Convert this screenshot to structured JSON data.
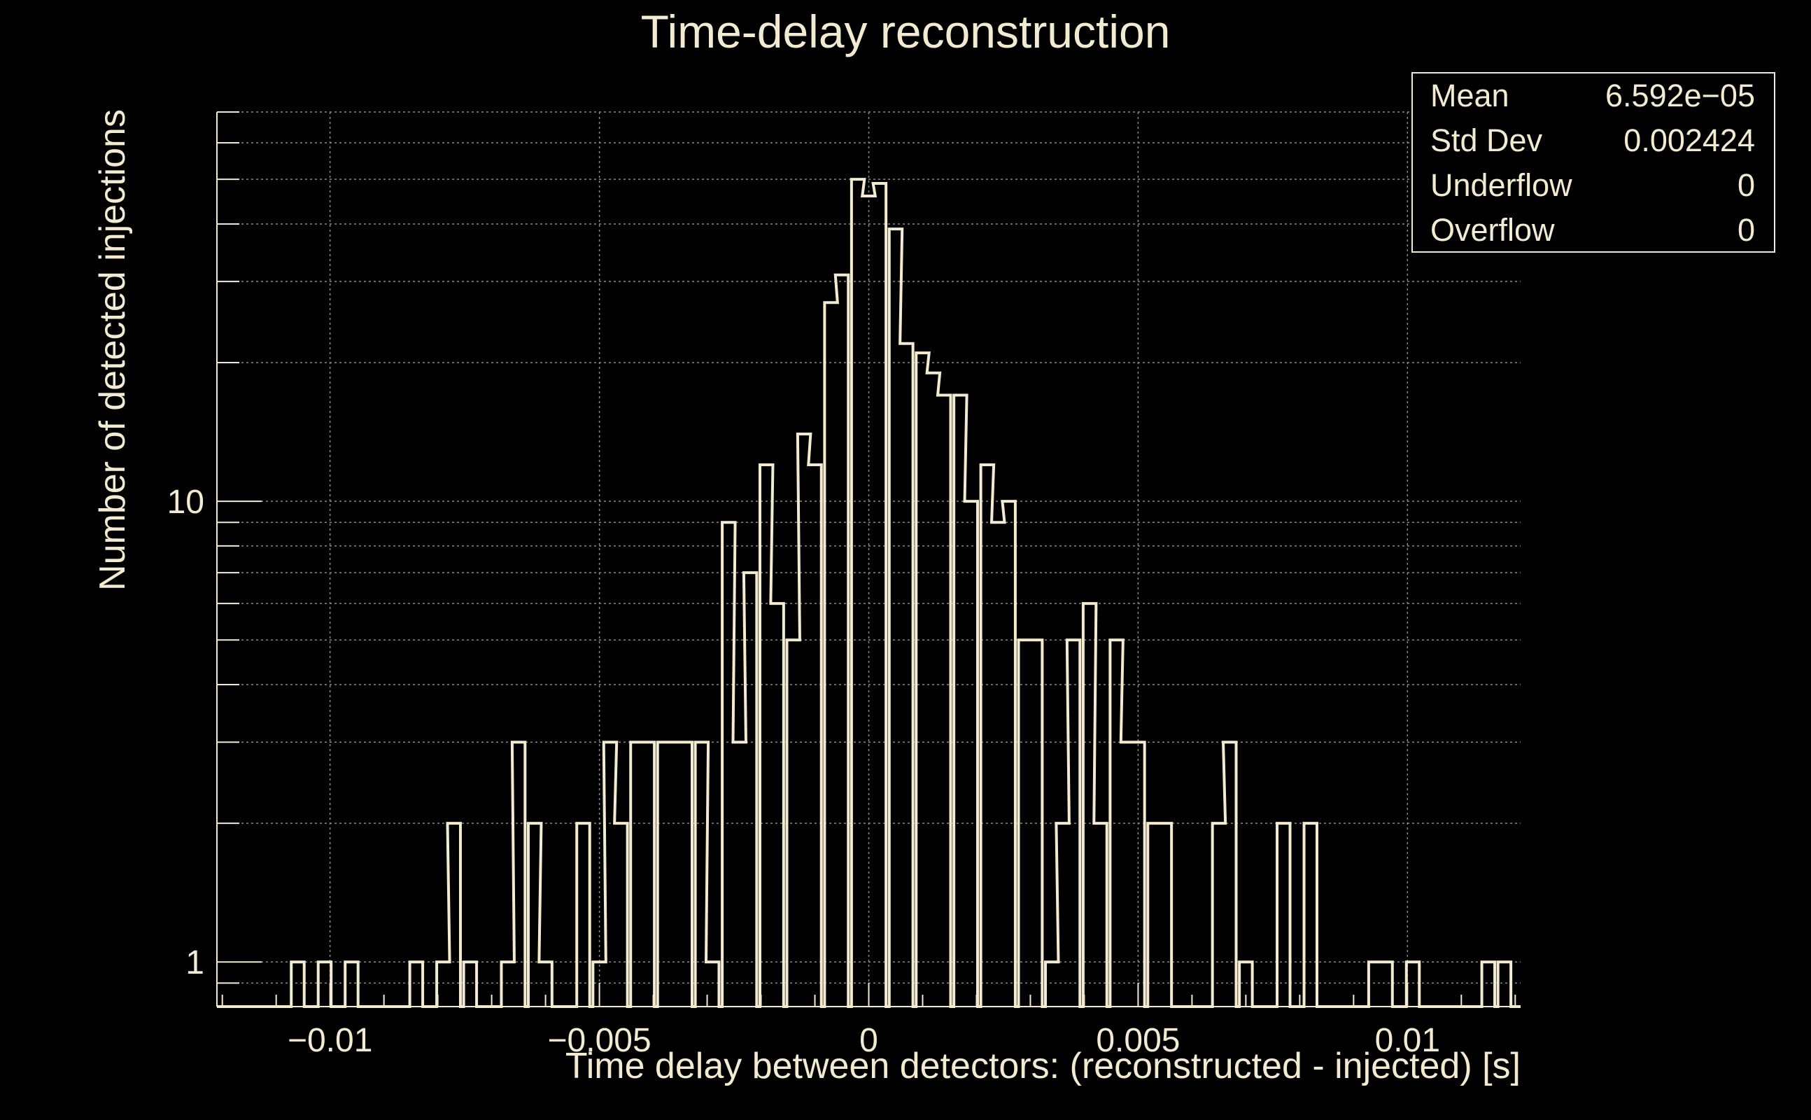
{
  "chart_data": {
    "type": "histogram",
    "title": "Time-delay reconstruction",
    "xlabel": "Time delay between detectors: (reconstructed - injected) [s]",
    "ylabel": "Number of detected injections",
    "xlim": [
      -0.0121,
      0.0121
    ],
    "ylim": [
      0.8,
      70
    ],
    "log_y": true,
    "grid": true,
    "x_ticks": [
      {
        "value": -0.01,
        "label": "−0.01"
      },
      {
        "value": -0.005,
        "label": "−0.005"
      },
      {
        "value": 0,
        "label": "0"
      },
      {
        "value": 0.005,
        "label": "0.005"
      },
      {
        "value": 0.01,
        "label": "0.01"
      }
    ],
    "y_ticks": [
      {
        "value": 1,
        "label": "1"
      },
      {
        "value": 10,
        "label": "10"
      }
    ],
    "bin_width": 0.00024,
    "bins": [
      {
        "x": -0.0106,
        "count": 1
      },
      {
        "x": -0.0101,
        "count": 1
      },
      {
        "x": -0.0096,
        "count": 1
      },
      {
        "x": -0.0084,
        "count": 1
      },
      {
        "x": -0.0079,
        "count": 1
      },
      {
        "x": -0.0077,
        "count": 2
      },
      {
        "x": -0.0074,
        "count": 1
      },
      {
        "x": -0.0067,
        "count": 1
      },
      {
        "x": -0.0065,
        "count": 3
      },
      {
        "x": -0.0062,
        "count": 2
      },
      {
        "x": -0.006,
        "count": 1
      },
      {
        "x": -0.0053,
        "count": 2
      },
      {
        "x": -0.005,
        "count": 1
      },
      {
        "x": -0.0048,
        "count": 3
      },
      {
        "x": -0.0046,
        "count": 2
      },
      {
        "x": -0.0043,
        "count": 3
      },
      {
        "x": -0.0041,
        "count": 3
      },
      {
        "x": -0.0038,
        "count": 3
      },
      {
        "x": -0.0036,
        "count": 3
      },
      {
        "x": -0.0034,
        "count": 3
      },
      {
        "x": -0.0031,
        "count": 3
      },
      {
        "x": -0.0029,
        "count": 1
      },
      {
        "x": -0.0026,
        "count": 9
      },
      {
        "x": -0.0024,
        "count": 3
      },
      {
        "x": -0.0022,
        "count": 7
      },
      {
        "x": -0.0019,
        "count": 12
      },
      {
        "x": -0.0017,
        "count": 6
      },
      {
        "x": -0.0014,
        "count": 5
      },
      {
        "x": -0.0012,
        "count": 14
      },
      {
        "x": -0.001,
        "count": 12
      },
      {
        "x": -0.0007,
        "count": 27
      },
      {
        "x": -0.0005,
        "count": 31
      },
      {
        "x": -0.0002,
        "count": 50
      },
      {
        "x": 0.0,
        "count": 46
      },
      {
        "x": 0.0002,
        "count": 49
      },
      {
        "x": 0.0005,
        "count": 39
      },
      {
        "x": 0.0007,
        "count": 22
      },
      {
        "x": 0.001,
        "count": 21
      },
      {
        "x": 0.0012,
        "count": 19
      },
      {
        "x": 0.0014,
        "count": 17
      },
      {
        "x": 0.0017,
        "count": 17
      },
      {
        "x": 0.0019,
        "count": 10
      },
      {
        "x": 0.0022,
        "count": 12
      },
      {
        "x": 0.0024,
        "count": 9
      },
      {
        "x": 0.0026,
        "count": 10
      },
      {
        "x": 0.0029,
        "count": 5
      },
      {
        "x": 0.0031,
        "count": 5
      },
      {
        "x": 0.0034,
        "count": 1
      },
      {
        "x": 0.0036,
        "count": 2
      },
      {
        "x": 0.0038,
        "count": 5
      },
      {
        "x": 0.0041,
        "count": 6
      },
      {
        "x": 0.0043,
        "count": 2
      },
      {
        "x": 0.0046,
        "count": 5
      },
      {
        "x": 0.0048,
        "count": 3
      },
      {
        "x": 0.005,
        "count": 3
      },
      {
        "x": 0.0053,
        "count": 2
      },
      {
        "x": 0.0055,
        "count": 2
      },
      {
        "x": 0.0065,
        "count": 2
      },
      {
        "x": 0.0067,
        "count": 3
      },
      {
        "x": 0.007,
        "count": 1
      },
      {
        "x": 0.0077,
        "count": 2
      },
      {
        "x": 0.0082,
        "count": 2
      },
      {
        "x": 0.0094,
        "count": 1
      },
      {
        "x": 0.0096,
        "count": 1
      },
      {
        "x": 0.0101,
        "count": 1
      },
      {
        "x": 0.0115,
        "count": 1
      },
      {
        "x": 0.0118,
        "count": 1
      }
    ],
    "stats": {
      "entries": [
        {
          "label": "Mean",
          "value": "6.592e−05"
        },
        {
          "label": "Std Dev",
          "value": "0.002424"
        },
        {
          "label": "Underflow",
          "value": "0"
        },
        {
          "label": "Overflow",
          "value": "0"
        }
      ],
      "placement": "top-right"
    },
    "colors": {
      "background": "#000000",
      "foreground": "#f3ead2",
      "grid": "#8a8a8a"
    }
  }
}
